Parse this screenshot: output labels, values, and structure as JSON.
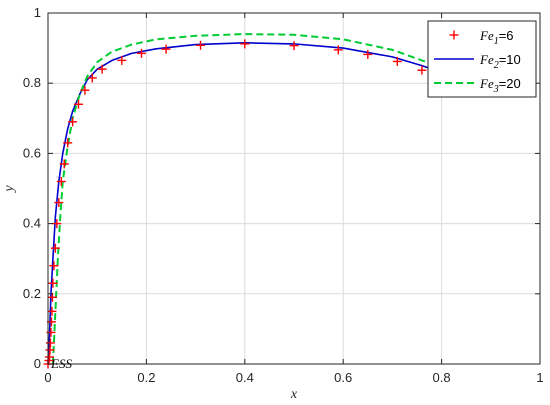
{
  "chart_data": {
    "type": "line",
    "xlabel": "x",
    "ylabel": "y",
    "xlim": [
      0,
      1
    ],
    "ylim": [
      0,
      1
    ],
    "xticks": [
      "0",
      "0.2",
      "0.4",
      "0.6",
      "0.8",
      "1"
    ],
    "yticks": [
      "0",
      "0.2",
      "0.4",
      "0.6",
      "0.8",
      "1"
    ],
    "grid": true,
    "legend_position": "top-right",
    "annotation": "ESS",
    "series": [
      {
        "name": "Fe1=6",
        "label_main": "Fe",
        "label_sub": "1",
        "label_suffix": "=6",
        "style": "markers-plus",
        "color": "#ff0000",
        "x": [
          0.0,
          0.002,
          0.003,
          0.004,
          0.005,
          0.006,
          0.007,
          0.008,
          0.009,
          0.01,
          0.012,
          0.015,
          0.018,
          0.022,
          0.027,
          0.033,
          0.04,
          0.05,
          0.062,
          0.075,
          0.09,
          0.11,
          0.15,
          0.19,
          0.24,
          0.31,
          0.4,
          0.5,
          0.59,
          0.65,
          0.71,
          0.76
        ],
        "y": [
          0.0,
          0.01,
          0.02,
          0.04,
          0.06,
          0.09,
          0.12,
          0.15,
          0.19,
          0.23,
          0.28,
          0.33,
          0.4,
          0.46,
          0.52,
          0.57,
          0.63,
          0.69,
          0.74,
          0.78,
          0.815,
          0.84,
          0.865,
          0.885,
          0.897,
          0.908,
          0.912,
          0.907,
          0.895,
          0.882,
          0.862,
          0.837
        ]
      },
      {
        "name": "Fe2=10",
        "label_main": "Fe",
        "label_sub": "2",
        "label_suffix": "=10",
        "style": "solid",
        "color": "#0000cc",
        "x": [
          0.0,
          0.003,
          0.006,
          0.01,
          0.015,
          0.022,
          0.03,
          0.04,
          0.05,
          0.065,
          0.08,
          0.1,
          0.13,
          0.17,
          0.22,
          0.3,
          0.4,
          0.5,
          0.6,
          0.7,
          0.76,
          0.8
        ],
        "y": [
          0.0,
          0.08,
          0.2,
          0.3,
          0.42,
          0.52,
          0.6,
          0.67,
          0.72,
          0.77,
          0.81,
          0.84,
          0.865,
          0.885,
          0.898,
          0.91,
          0.915,
          0.912,
          0.9,
          0.875,
          0.85,
          0.83
        ]
      },
      {
        "name": "Fe3=20",
        "label_main": "Fe",
        "label_sub": "3",
        "label_suffix": "=20",
        "style": "dashed",
        "color": "#00cc33",
        "x": [
          0.01,
          0.015,
          0.02,
          0.025,
          0.03,
          0.04,
          0.05,
          0.065,
          0.08,
          0.1,
          0.13,
          0.17,
          0.22,
          0.3,
          0.4,
          0.5,
          0.6,
          0.7,
          0.76,
          0.8
        ],
        "y": [
          0.0,
          0.15,
          0.3,
          0.42,
          0.52,
          0.62,
          0.7,
          0.77,
          0.82,
          0.86,
          0.89,
          0.91,
          0.925,
          0.935,
          0.94,
          0.938,
          0.925,
          0.895,
          0.865,
          0.845
        ]
      }
    ]
  }
}
